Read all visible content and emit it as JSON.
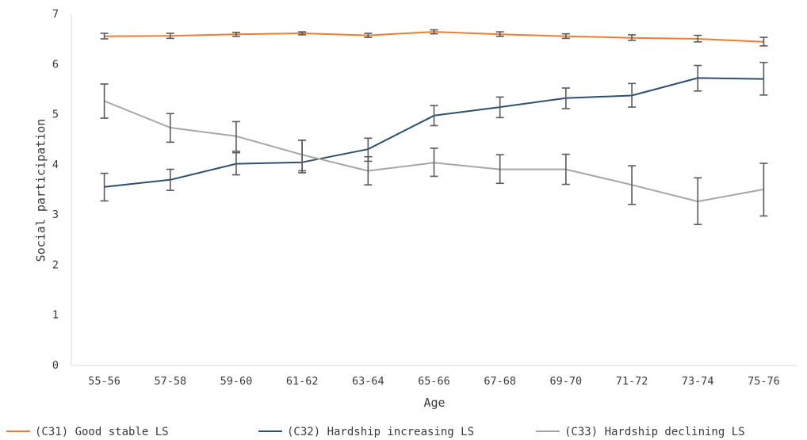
{
  "chart_data": {
    "type": "line",
    "xlabel": "Age",
    "ylabel": "Social participation",
    "ylim": [
      0,
      7
    ],
    "yticks": [
      "0",
      "1",
      "2",
      "3",
      "4",
      "5",
      "6",
      "7"
    ],
    "categories": [
      "55-56",
      "57-58",
      "59-60",
      "61-62",
      "63-64",
      "65-66",
      "67-68",
      "69-70",
      "71-72",
      "73-74",
      "75-76"
    ],
    "grid": false,
    "legend_position": "bottom",
    "error_bars": true,
    "series": [
      {
        "name": "(C31) Good stable LS",
        "color": "#ED7D31",
        "values": [
          6.56,
          6.57,
          6.6,
          6.62,
          6.58,
          6.65,
          6.6,
          6.56,
          6.53,
          6.51,
          6.45
        ],
        "err_low": [
          6.51,
          6.52,
          6.56,
          6.59,
          6.54,
          6.61,
          6.56,
          6.52,
          6.48,
          6.45,
          6.37
        ],
        "err_high": [
          6.62,
          6.62,
          6.64,
          6.65,
          6.62,
          6.69,
          6.65,
          6.61,
          6.59,
          6.58,
          6.54
        ]
      },
      {
        "name": "(C32) Hardship increasing LS",
        "color": "#2E4F6E",
        "values": [
          3.56,
          3.7,
          4.02,
          4.05,
          4.31,
          4.98,
          5.15,
          5.33,
          5.38,
          5.73,
          5.71
        ],
        "err_low": [
          3.28,
          3.49,
          3.8,
          3.84,
          4.07,
          4.78,
          4.94,
          5.12,
          5.15,
          5.47,
          5.39
        ],
        "err_high": [
          3.83,
          3.91,
          4.24,
          4.49,
          4.53,
          5.18,
          5.35,
          5.53,
          5.62,
          5.98,
          6.04
        ]
      },
      {
        "name": "(C33) Hardship declining LS",
        "color": "#A6A6A6",
        "values": [
          5.27,
          4.74,
          4.57,
          4.2,
          3.88,
          4.04,
          3.91,
          3.91,
          3.6,
          3.27,
          3.51
        ],
        "err_low": [
          4.93,
          4.45,
          4.27,
          3.88,
          3.6,
          3.77,
          3.63,
          3.61,
          3.21,
          2.81,
          2.98
        ],
        "err_high": [
          5.61,
          5.02,
          4.86,
          4.49,
          4.16,
          4.33,
          4.2,
          4.21,
          3.98,
          3.74,
          4.03
        ]
      }
    ]
  }
}
